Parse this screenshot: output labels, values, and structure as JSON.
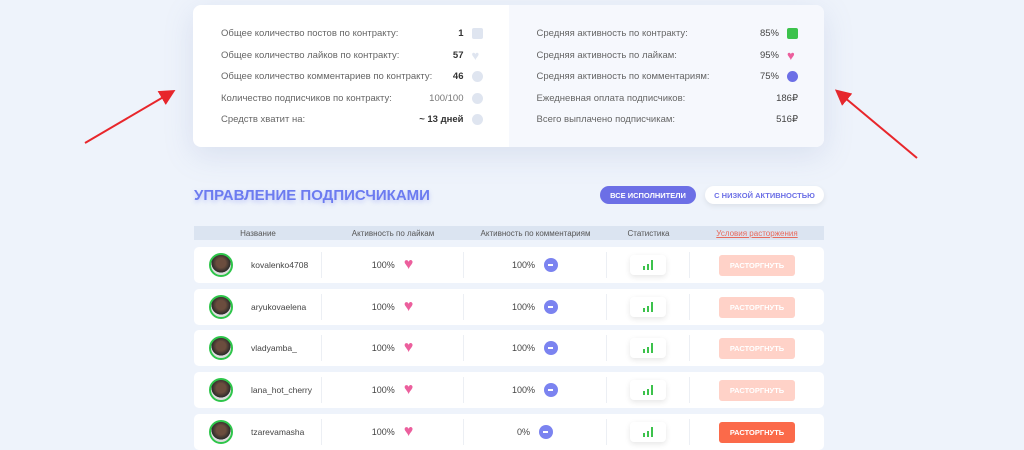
{
  "summary_left": [
    {
      "label": "Общее количество постов по контракту:",
      "value": "1",
      "icon": "image-icon"
    },
    {
      "label": "Общее количество лайков по контракту:",
      "value": "57",
      "icon": "heart-icon"
    },
    {
      "label": "Общее количество комментариев по контракту:",
      "value": "46",
      "icon": "comment-icon"
    },
    {
      "label": "Количество подписчиков по контракту:",
      "value": "100/100",
      "icon": "user-icon"
    },
    {
      "label": "Средств хватит на:",
      "value": "~ 13 дней",
      "icon": "clock-icon"
    }
  ],
  "summary_right": [
    {
      "label": "Средняя активность по контракту:",
      "value": "85%",
      "icon": "document-icon",
      "color": "#3cc24c"
    },
    {
      "label": "Средняя активность по лайкам:",
      "value": "95%",
      "icon": "heart-icon",
      "color": "#ec5f9d"
    },
    {
      "label": "Средняя активность по комментариям:",
      "value": "75%",
      "icon": "comment-icon",
      "color": "#6c6fe6"
    },
    {
      "label": "Ежедневная оплата подписчиков:",
      "value": "186₽"
    },
    {
      "label": "Всего выплачено подписчикам:",
      "value": "516₽"
    }
  ],
  "section": {
    "title": "УПРАВЛЕНИЕ ПОДПИСЧИКАМИ",
    "filter_all": "ВСЕ ИСПОЛНИТЕЛИ",
    "filter_low": "С НИЗКОЙ АКТИВНОСТЬЮ"
  },
  "table": {
    "headers": [
      "Название",
      "Активность по лайкам",
      "Активность по комментариям",
      "Статистика",
      "Условия расторжения"
    ],
    "terminate_label": "РАСТОРГНУТЬ",
    "rows": [
      {
        "name": "kovalenko4708",
        "likes": "100%",
        "comments": "100%",
        "terminate_active": false
      },
      {
        "name": "aryukovaelena",
        "likes": "100%",
        "comments": "100%",
        "terminate_active": false
      },
      {
        "name": "vladyamba_",
        "likes": "100%",
        "comments": "100%",
        "terminate_active": false
      },
      {
        "name": "lana_hot_cherry",
        "likes": "100%",
        "comments": "100%",
        "terminate_active": false
      },
      {
        "name": "tzarevamasha",
        "likes": "100%",
        "comments": "0%",
        "terminate_active": true
      }
    ]
  }
}
